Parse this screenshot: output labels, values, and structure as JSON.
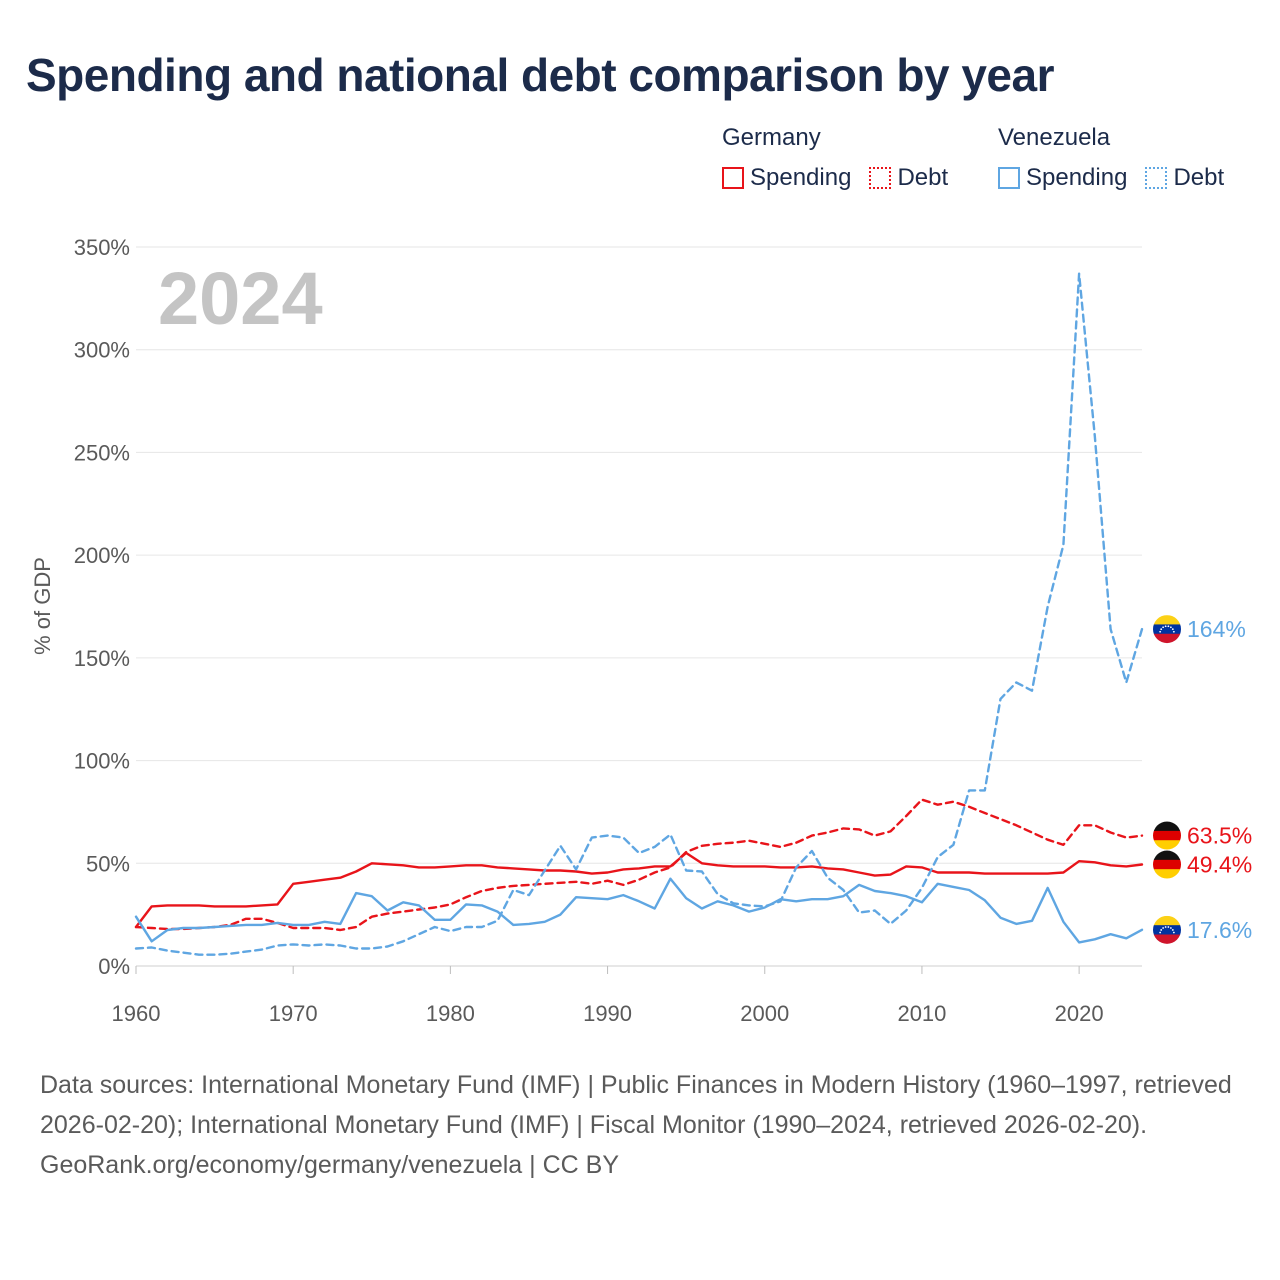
{
  "title": "Spending and national debt comparison by year",
  "legend": {
    "groups": [
      {
        "country": "Germany",
        "color": "#e8141a",
        "spending_label": "Spending",
        "debt_label": "Debt"
      },
      {
        "country": "Venezuela",
        "color": "#5fa6e2",
        "spending_label": "Spending",
        "debt_label": "Debt"
      }
    ]
  },
  "chart_data": {
    "type": "line",
    "title": "Spending and national debt comparison by year",
    "watermark_year": "2024",
    "ylabel": "% of GDP",
    "xlabel": "",
    "xlim": [
      1960,
      2024
    ],
    "ylim": [
      0,
      350
    ],
    "xticks": [
      1960,
      1970,
      1980,
      1990,
      2000,
      2010,
      2020
    ],
    "yticks": [
      0,
      50,
      100,
      150,
      200,
      250,
      300,
      350
    ],
    "ytick_labels": [
      "0%",
      "50%",
      "100%",
      "150%",
      "200%",
      "250%",
      "300%",
      "350%"
    ],
    "grid": true,
    "series": [
      {
        "name": "Germany Spending",
        "country": "Germany",
        "metric": "Spending",
        "color": "#e8141a",
        "dash": "solid",
        "end_label": "49.4%",
        "flag": "germany",
        "points": [
          [
            1960,
            19
          ],
          [
            1961,
            29
          ],
          [
            1962,
            29.5
          ],
          [
            1963,
            29.5
          ],
          [
            1964,
            29.5
          ],
          [
            1965,
            29
          ],
          [
            1966,
            29
          ],
          [
            1967,
            29
          ],
          [
            1968,
            29.5
          ],
          [
            1969,
            30
          ],
          [
            1970,
            40
          ],
          [
            1971,
            41
          ],
          [
            1972,
            42
          ],
          [
            1973,
            43
          ],
          [
            1974,
            46
          ],
          [
            1975,
            50
          ],
          [
            1976,
            49.5
          ],
          [
            1977,
            49
          ],
          [
            1978,
            48
          ],
          [
            1979,
            48
          ],
          [
            1980,
            48.5
          ],
          [
            1981,
            49
          ],
          [
            1982,
            49
          ],
          [
            1983,
            48
          ],
          [
            1984,
            47.5
          ],
          [
            1985,
            47
          ],
          [
            1986,
            46.5
          ],
          [
            1987,
            46.5
          ],
          [
            1988,
            46
          ],
          [
            1989,
            45
          ],
          [
            1990,
            45.5
          ],
          [
            1991,
            47
          ],
          [
            1992,
            47.5
          ],
          [
            1993,
            48.5
          ],
          [
            1994,
            48.5
          ],
          [
            1995,
            55
          ],
          [
            1996,
            50
          ],
          [
            1997,
            49
          ],
          [
            1998,
            48.5
          ],
          [
            1999,
            48.5
          ],
          [
            2000,
            48.5
          ],
          [
            2001,
            48
          ],
          [
            2002,
            48
          ],
          [
            2003,
            48.5
          ],
          [
            2004,
            47.5
          ],
          [
            2005,
            47
          ],
          [
            2006,
            45.5
          ],
          [
            2007,
            44
          ],
          [
            2008,
            44.5
          ],
          [
            2009,
            48.5
          ],
          [
            2010,
            48
          ],
          [
            2011,
            45.5
          ],
          [
            2012,
            45.5
          ],
          [
            2013,
            45.5
          ],
          [
            2014,
            45
          ],
          [
            2015,
            45
          ],
          [
            2016,
            45
          ],
          [
            2017,
            45
          ],
          [
            2018,
            45
          ],
          [
            2019,
            45.5
          ],
          [
            2020,
            51
          ],
          [
            2021,
            50.5
          ],
          [
            2022,
            49
          ],
          [
            2023,
            48.5
          ],
          [
            2024,
            49.4
          ]
        ]
      },
      {
        "name": "Germany Debt",
        "country": "Germany",
        "metric": "Debt",
        "color": "#e8141a",
        "dash": "dashed",
        "end_label": "63.5%",
        "flag": "germany",
        "points": [
          [
            1960,
            19
          ],
          [
            1961,
            18.5
          ],
          [
            1962,
            18
          ],
          [
            1963,
            18
          ],
          [
            1964,
            18.5
          ],
          [
            1965,
            19
          ],
          [
            1966,
            20
          ],
          [
            1967,
            23
          ],
          [
            1968,
            23
          ],
          [
            1969,
            21
          ],
          [
            1970,
            18.5
          ],
          [
            1971,
            18.5
          ],
          [
            1972,
            18.5
          ],
          [
            1973,
            17.5
          ],
          [
            1974,
            19
          ],
          [
            1975,
            24
          ],
          [
            1976,
            25.5
          ],
          [
            1977,
            26.5
          ],
          [
            1978,
            27.5
          ],
          [
            1979,
            28.5
          ],
          [
            1980,
            30
          ],
          [
            1981,
            33.5
          ],
          [
            1982,
            36.5
          ],
          [
            1983,
            38
          ],
          [
            1984,
            39
          ],
          [
            1985,
            39.5
          ],
          [
            1986,
            40
          ],
          [
            1987,
            40.5
          ],
          [
            1988,
            41
          ],
          [
            1989,
            40
          ],
          [
            1990,
            41.5
          ],
          [
            1991,
            39.5
          ],
          [
            1992,
            42
          ],
          [
            1993,
            45.5
          ],
          [
            1994,
            48
          ],
          [
            1995,
            55.5
          ],
          [
            1996,
            58.5
          ],
          [
            1997,
            59.5
          ],
          [
            1998,
            60
          ],
          [
            1999,
            61
          ],
          [
            2000,
            59.5
          ],
          [
            2001,
            58
          ],
          [
            2002,
            60
          ],
          [
            2003,
            63.5
          ],
          [
            2004,
            65
          ],
          [
            2005,
            67
          ],
          [
            2006,
            66.5
          ],
          [
            2007,
            63.5
          ],
          [
            2008,
            65.5
          ],
          [
            2009,
            73
          ],
          [
            2010,
            81
          ],
          [
            2011,
            78.5
          ],
          [
            2012,
            80
          ],
          [
            2013,
            77.5
          ],
          [
            2014,
            74.5
          ],
          [
            2015,
            71.5
          ],
          [
            2016,
            68.5
          ],
          [
            2017,
            65
          ],
          [
            2018,
            61.5
          ],
          [
            2019,
            59
          ],
          [
            2020,
            68.5
          ],
          [
            2021,
            68.5
          ],
          [
            2022,
            65
          ],
          [
            2023,
            62.5
          ],
          [
            2024,
            63.5
          ]
        ]
      },
      {
        "name": "Venezuela Spending",
        "country": "Venezuela",
        "metric": "Spending",
        "color": "#5fa6e2",
        "dash": "solid",
        "end_label": "17.6%",
        "flag": "venezuela",
        "points": [
          [
            1960,
            24
          ],
          [
            1961,
            12
          ],
          [
            1962,
            17.5
          ],
          [
            1963,
            18.5
          ],
          [
            1964,
            18.5
          ],
          [
            1965,
            19
          ],
          [
            1966,
            19.5
          ],
          [
            1967,
            20
          ],
          [
            1968,
            20
          ],
          [
            1969,
            21
          ],
          [
            1970,
            20
          ],
          [
            1971,
            20
          ],
          [
            1972,
            21.5
          ],
          [
            1973,
            20.5
          ],
          [
            1974,
            35.5
          ],
          [
            1975,
            34
          ],
          [
            1976,
            27
          ],
          [
            1977,
            31
          ],
          [
            1978,
            29.5
          ],
          [
            1979,
            22.5
          ],
          [
            1980,
            22.5
          ],
          [
            1981,
            30
          ],
          [
            1982,
            29.5
          ],
          [
            1983,
            26.5
          ],
          [
            1984,
            20
          ],
          [
            1985,
            20.5
          ],
          [
            1986,
            21.5
          ],
          [
            1987,
            25
          ],
          [
            1988,
            33.5
          ],
          [
            1989,
            33
          ],
          [
            1990,
            32.5
          ],
          [
            1991,
            34.5
          ],
          [
            1992,
            31.5
          ],
          [
            1993,
            28
          ],
          [
            1994,
            42.5
          ],
          [
            1995,
            33
          ],
          [
            1996,
            28
          ],
          [
            1997,
            31.5
          ],
          [
            1998,
            29.5
          ],
          [
            1999,
            26.5
          ],
          [
            2000,
            28.5
          ],
          [
            2001,
            32.5
          ],
          [
            2002,
            31.5
          ],
          [
            2003,
            32.5
          ],
          [
            2004,
            32.5
          ],
          [
            2005,
            34
          ],
          [
            2006,
            39.5
          ],
          [
            2007,
            36.5
          ],
          [
            2008,
            35.5
          ],
          [
            2009,
            34
          ],
          [
            2010,
            31
          ],
          [
            2011,
            40
          ],
          [
            2012,
            38.5
          ],
          [
            2013,
            37
          ],
          [
            2014,
            32
          ],
          [
            2015,
            23.5
          ],
          [
            2016,
            20.5
          ],
          [
            2017,
            22
          ],
          [
            2018,
            38
          ],
          [
            2019,
            21.5
          ],
          [
            2020,
            11.5
          ],
          [
            2021,
            13
          ],
          [
            2022,
            15.5
          ],
          [
            2023,
            13.5
          ],
          [
            2024,
            17.6
          ]
        ]
      },
      {
        "name": "Venezuela Debt",
        "country": "Venezuela",
        "metric": "Debt",
        "color": "#5fa6e2",
        "dash": "dashed",
        "end_label": "164%",
        "flag": "venezuela",
        "points": [
          [
            1960,
            8.5
          ],
          [
            1961,
            9
          ],
          [
            1962,
            7.5
          ],
          [
            1963,
            6.5
          ],
          [
            1964,
            5.5
          ],
          [
            1965,
            5.5
          ],
          [
            1966,
            6
          ],
          [
            1967,
            7
          ],
          [
            1968,
            8
          ],
          [
            1969,
            10
          ],
          [
            1970,
            10.5
          ],
          [
            1971,
            10
          ],
          [
            1972,
            10.5
          ],
          [
            1973,
            10
          ],
          [
            1974,
            8.5
          ],
          [
            1975,
            8.5
          ],
          [
            1976,
            9.5
          ],
          [
            1977,
            12
          ],
          [
            1978,
            15.5
          ],
          [
            1979,
            19
          ],
          [
            1980,
            17
          ],
          [
            1981,
            19
          ],
          [
            1982,
            19
          ],
          [
            1983,
            22
          ],
          [
            1984,
            37
          ],
          [
            1985,
            34.5
          ],
          [
            1986,
            46.5
          ],
          [
            1987,
            58.5
          ],
          [
            1988,
            47
          ],
          [
            1989,
            62.5
          ],
          [
            1990,
            63.5
          ],
          [
            1991,
            62.5
          ],
          [
            1992,
            55
          ],
          [
            1993,
            58
          ],
          [
            1994,
            64
          ],
          [
            1995,
            46.5
          ],
          [
            1996,
            46
          ],
          [
            1997,
            35
          ],
          [
            1998,
            30.5
          ],
          [
            1999,
            29.5
          ],
          [
            2000,
            29
          ],
          [
            2001,
            31.5
          ],
          [
            2002,
            48
          ],
          [
            2003,
            56
          ],
          [
            2004,
            43
          ],
          [
            2005,
            37
          ],
          [
            2006,
            26
          ],
          [
            2007,
            27
          ],
          [
            2008,
            20.5
          ],
          [
            2009,
            27
          ],
          [
            2010,
            38
          ],
          [
            2011,
            53
          ],
          [
            2012,
            59
          ],
          [
            2013,
            85.5
          ],
          [
            2014,
            85.5
          ],
          [
            2015,
            130
          ],
          [
            2016,
            138
          ],
          [
            2017,
            134
          ],
          [
            2018,
            175
          ],
          [
            2019,
            205
          ],
          [
            2020,
            337
          ],
          [
            2021,
            258
          ],
          [
            2022,
            164
          ],
          [
            2023,
            138
          ],
          [
            2024,
            164
          ]
        ]
      }
    ]
  },
  "footer": {
    "sources": "Data sources: International Monetary Fund (IMF) | Public Finances in Modern History (1960–1997, retrieved 2026-02-20); International Monetary Fund (IMF) | Fiscal Monitor (1990–2024, retrieved 2026-02-20).",
    "credit": "GeoRank.org/economy/germany/venezuela | CC BY"
  }
}
